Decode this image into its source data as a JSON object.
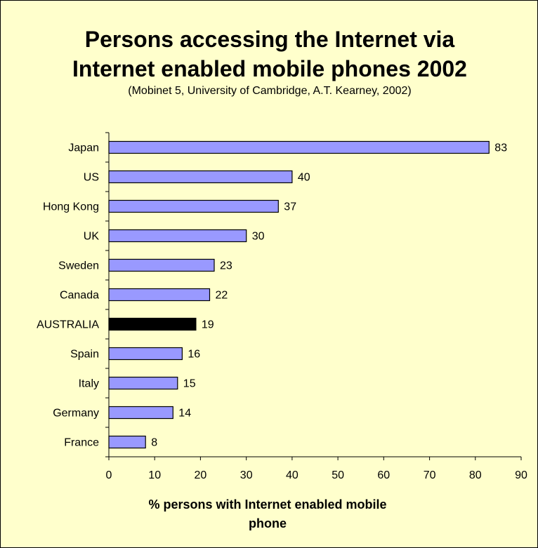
{
  "chart_data": {
    "type": "bar",
    "orientation": "horizontal",
    "title": [
      "Persons accessing the Internet via",
      "Internet enabled mobile phones  2002"
    ],
    "subtitle": "(Mobinet 5, University of Cambridge, A.T. Kearney, 2002)",
    "xlabel": [
      "% persons with Internet enabled mobile",
      "phone"
    ],
    "ylabel": "",
    "categories": [
      "Japan",
      "US",
      "Hong Kong",
      "UK",
      "Sweden",
      "Canada",
      "AUSTRALIA",
      "Spain",
      "Italy",
      "Germany",
      "France"
    ],
    "values": [
      83,
      40,
      37,
      30,
      23,
      22,
      19,
      16,
      15,
      14,
      8
    ],
    "highlight": "AUSTRALIA",
    "xlim": [
      0,
      90
    ],
    "xticks": [
      0,
      10,
      20,
      30,
      40,
      50,
      60,
      70,
      80,
      90
    ],
    "grid": false,
    "legend": "none",
    "colors": {
      "background": "#ffffcc",
      "bar": "#9999ff",
      "highlight_bar": "#000000",
      "bar_outline": "#000000"
    }
  }
}
